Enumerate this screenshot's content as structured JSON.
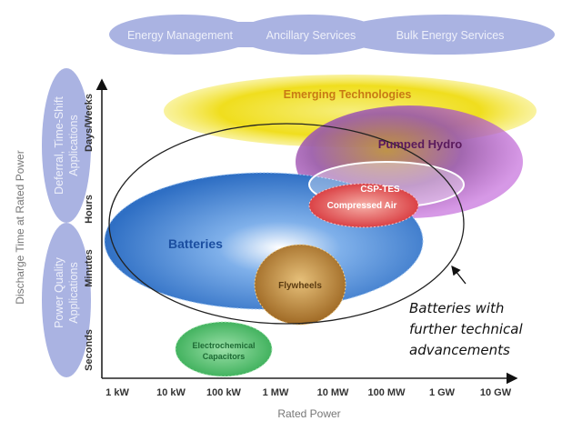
{
  "top_band": [
    "Energy Management",
    "Ancillary Services",
    "Bulk Energy Services"
  ],
  "left_band": {
    "upper": [
      "Deferral, Time-Shift",
      "Applications"
    ],
    "lower": [
      "Power Quality",
      "Applications"
    ]
  },
  "y_axis": {
    "label": "Discharge Time at Rated Power",
    "ticks": [
      "Seconds",
      "Minutes",
      "Hours",
      "Days/Weeks"
    ]
  },
  "x_axis": {
    "label": "Rated Power",
    "ticks": [
      "1 kW",
      "10 kW",
      "100 kW",
      "1 MW",
      "10 MW",
      "100 MW",
      "1 GW",
      "10 GW"
    ]
  },
  "regions": {
    "emerging": "Emerging Technologies",
    "pumped_hydro": "Pumped Hydro",
    "csp_tes": "CSP-TES",
    "compressed_air": "Compressed Air",
    "batteries": "Batteries",
    "flywheels": "Flywheels",
    "capacitors": [
      "Electrochemical",
      "Capacitors"
    ]
  },
  "annotation": [
    "Batteries with",
    "further technical",
    "advancements"
  ],
  "colors": {
    "band": "#a9b3e3",
    "emerging": "#f2e12a",
    "pumped_hydro": "#a446b8",
    "batteries": "#3d7fd0",
    "compressed_air": "#e0474a",
    "flywheels": "#b8893a",
    "capacitors": "#4cbf6a"
  }
}
